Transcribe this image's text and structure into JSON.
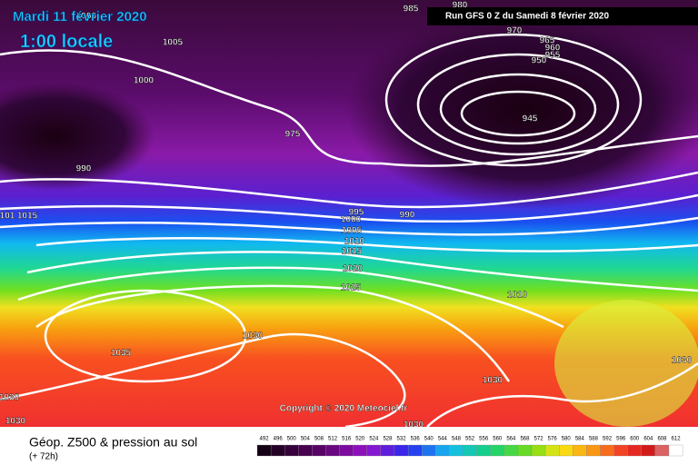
{
  "header": {
    "date": "Mardi 11 février 2020",
    "time": "1:00 locale",
    "run": "Run GFS 0 Z du Samedi 8 février 2020"
  },
  "map": {
    "copyright": "Copyright © 2020 Meteociel.fr",
    "isobar_labels": [
      1000,
      1005,
      1000,
      990,
      975,
      985,
      980,
      970,
      965,
      960,
      955,
      950,
      945,
      995,
      1000,
      1005,
      1010,
      1015,
      990,
      1020,
      1025,
      1030,
      1035,
      1030,
      1030,
      1030,
      1030,
      1030,
      1010,
      101,
      1015
    ]
  },
  "footer": {
    "title": "Géop. Z500 & pression au sol",
    "lead": "(+ 72h)",
    "legend_levels": [
      492,
      496,
      500,
      504,
      508,
      512,
      516,
      520,
      524,
      528,
      532,
      536,
      540,
      544,
      548,
      552,
      556,
      560,
      564,
      568,
      572,
      576,
      580,
      584,
      588,
      592,
      596,
      600,
      604,
      608,
      612
    ]
  }
}
